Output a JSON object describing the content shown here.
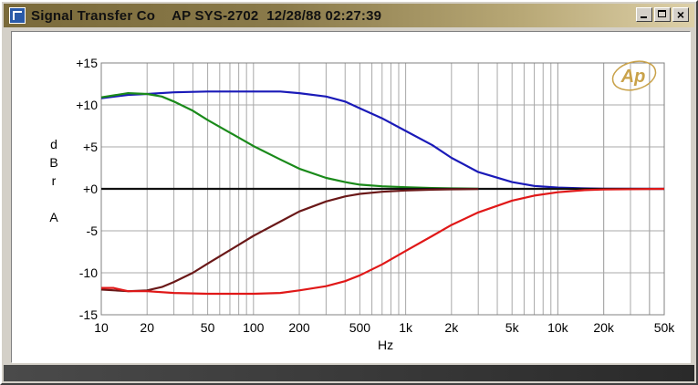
{
  "window": {
    "title_app": "Signal Transfer Co",
    "title_info": "AP SYS-2702  12/28/88 02:27:39",
    "buttons": {
      "minimize": "_",
      "maximize": "□",
      "close": "×"
    }
  },
  "logo": {
    "text": "Ap"
  },
  "chart_data": {
    "type": "line",
    "xscale": "log",
    "xlim": [
      10,
      50000
    ],
    "ylim": [
      -15,
      15
    ],
    "xlabel": "Hz",
    "ylabel": [
      "d",
      "B",
      "r",
      "",
      "A"
    ],
    "xticks": [
      {
        "v": 10,
        "label": "10"
      },
      {
        "v": 20,
        "label": "20"
      },
      {
        "v": 50,
        "label": "50"
      },
      {
        "v": 100,
        "label": "100"
      },
      {
        "v": 200,
        "label": "200"
      },
      {
        "v": 500,
        "label": "500"
      },
      {
        "v": 1000,
        "label": "1k"
      },
      {
        "v": 2000,
        "label": "2k"
      },
      {
        "v": 5000,
        "label": "5k"
      },
      {
        "v": 10000,
        "label": "10k"
      },
      {
        "v": 20000,
        "label": "20k"
      },
      {
        "v": 50000,
        "label": "50k"
      }
    ],
    "yticks": [
      {
        "v": 15,
        "label": "+15"
      },
      {
        "v": 10,
        "label": "+10"
      },
      {
        "v": 5,
        "label": "+5"
      },
      {
        "v": 0,
        "label": "+0"
      },
      {
        "v": -5,
        "label": "-5"
      },
      {
        "v": -10,
        "label": "-10"
      },
      {
        "v": -15,
        "label": "-15"
      }
    ],
    "grid": true,
    "series": [
      {
        "color": "#1a1ab8",
        "points": [
          [
            10,
            10.8
          ],
          [
            15,
            11.2
          ],
          [
            20,
            11.3
          ],
          [
            30,
            11.5
          ],
          [
            50,
            11.6
          ],
          [
            100,
            11.6
          ],
          [
            150,
            11.6
          ],
          [
            200,
            11.4
          ],
          [
            300,
            11.0
          ],
          [
            400,
            10.4
          ],
          [
            500,
            9.6
          ],
          [
            700,
            8.4
          ],
          [
            1000,
            6.9
          ],
          [
            1500,
            5.2
          ],
          [
            2000,
            3.7
          ],
          [
            3000,
            2.0
          ],
          [
            5000,
            0.8
          ],
          [
            7000,
            0.35
          ],
          [
            10000,
            0.15
          ],
          [
            15000,
            0.05
          ],
          [
            20000,
            0.02
          ],
          [
            50000,
            0.0
          ]
        ]
      },
      {
        "color": "#1a8a1a",
        "points": [
          [
            10,
            10.9
          ],
          [
            15,
            11.4
          ],
          [
            20,
            11.3
          ],
          [
            25,
            11.0
          ],
          [
            30,
            10.4
          ],
          [
            40,
            9.3
          ],
          [
            50,
            8.2
          ],
          [
            70,
            6.7
          ],
          [
            100,
            5.1
          ],
          [
            150,
            3.5
          ],
          [
            200,
            2.4
          ],
          [
            300,
            1.3
          ],
          [
            400,
            0.8
          ],
          [
            500,
            0.5
          ],
          [
            700,
            0.3
          ],
          [
            1000,
            0.2
          ],
          [
            1500,
            0.1
          ],
          [
            2000,
            0.05
          ],
          [
            3000,
            0.02
          ]
        ]
      },
      {
        "color": "#111111",
        "points": [
          [
            10,
            0.0
          ],
          [
            50000,
            0.0
          ]
        ]
      },
      {
        "color": "#6a1818",
        "points": [
          [
            10,
            -12.0
          ],
          [
            15,
            -12.2
          ],
          [
            20,
            -12.1
          ],
          [
            25,
            -11.7
          ],
          [
            30,
            -11.1
          ],
          [
            40,
            -10.0
          ],
          [
            50,
            -8.9
          ],
          [
            70,
            -7.3
          ],
          [
            100,
            -5.6
          ],
          [
            150,
            -3.9
          ],
          [
            200,
            -2.7
          ],
          [
            300,
            -1.5
          ],
          [
            400,
            -0.9
          ],
          [
            500,
            -0.6
          ],
          [
            700,
            -0.35
          ],
          [
            1000,
            -0.2
          ],
          [
            1500,
            -0.1
          ],
          [
            2000,
            -0.05
          ],
          [
            3000,
            -0.02
          ]
        ]
      },
      {
        "color": "#e01818",
        "points": [
          [
            10,
            -11.8
          ],
          [
            12,
            -11.8
          ],
          [
            15,
            -12.2
          ],
          [
            20,
            -12.2
          ],
          [
            30,
            -12.4
          ],
          [
            50,
            -12.5
          ],
          [
            100,
            -12.5
          ],
          [
            150,
            -12.4
          ],
          [
            200,
            -12.1
          ],
          [
            300,
            -11.6
          ],
          [
            400,
            -11.0
          ],
          [
            500,
            -10.3
          ],
          [
            700,
            -9.0
          ],
          [
            1000,
            -7.4
          ],
          [
            1500,
            -5.6
          ],
          [
            2000,
            -4.3
          ],
          [
            3000,
            -2.8
          ],
          [
            5000,
            -1.4
          ],
          [
            7000,
            -0.8
          ],
          [
            10000,
            -0.4
          ],
          [
            15000,
            -0.15
          ],
          [
            20000,
            -0.08
          ],
          [
            50000,
            0.0
          ]
        ]
      }
    ]
  }
}
